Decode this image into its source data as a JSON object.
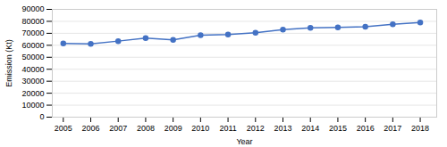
{
  "chart_data": {
    "type": "line",
    "x": [
      2005,
      2006,
      2007,
      2008,
      2009,
      2010,
      2011,
      2012,
      2013,
      2014,
      2015,
      2016,
      2017,
      2018
    ],
    "values": [
      61500,
      61200,
      63500,
      66000,
      64500,
      68500,
      69000,
      70500,
      73000,
      74500,
      75000,
      75500,
      77500,
      79000
    ],
    "color": "#4472C4",
    "marker": "circle",
    "xlabel": "Year",
    "ylabel": "Emission (Kt)",
    "xlim": [
      2004.6,
      2018.6
    ],
    "xticks": [
      2005,
      2006,
      2007,
      2008,
      2009,
      2010,
      2011,
      2012,
      2013,
      2014,
      2015,
      2016,
      2017,
      2018
    ],
    "ylim": [
      0,
      90000
    ],
    "yticks": [
      0,
      10000,
      20000,
      30000,
      40000,
      50000,
      60000,
      70000,
      80000,
      90000
    ],
    "grid": true
  }
}
